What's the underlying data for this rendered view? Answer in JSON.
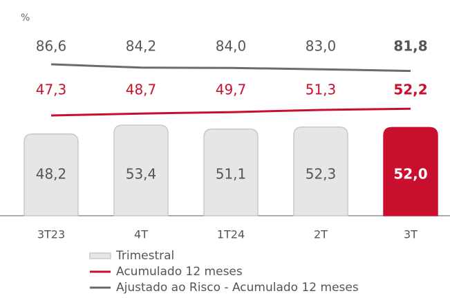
{
  "chart_data": {
    "type": "bar_line",
    "unit": "%",
    "categories": [
      "3T23",
      "4T",
      "1T24",
      "2T",
      "3T"
    ],
    "highlight_color": "#c8102e",
    "series": [
      {
        "name": "Trimestral",
        "type": "bar",
        "color": "#e6e6e6",
        "values": [
          48.2,
          53.4,
          51.1,
          52.3,
          52.0
        ],
        "value_labels": [
          "48,2",
          "53,4",
          "51,1",
          "52,3",
          "52,0"
        ]
      },
      {
        "name": "Acumulado 12 meses",
        "type": "line",
        "color": "#c8102e",
        "values": [
          47.3,
          48.7,
          49.7,
          51.3,
          52.2
        ],
        "value_labels": [
          "47,3",
          "48,7",
          "49,7",
          "51,3",
          "52,2"
        ]
      },
      {
        "name": "Ajustado ao Risco - Acumulado 12 meses",
        "type": "line",
        "color": "#6b6b6b",
        "values": [
          86.6,
          84.2,
          84.0,
          83.0,
          81.8
        ],
        "value_labels": [
          "86,6",
          "84,2",
          "84,0",
          "83,0",
          "81,8"
        ]
      }
    ]
  }
}
